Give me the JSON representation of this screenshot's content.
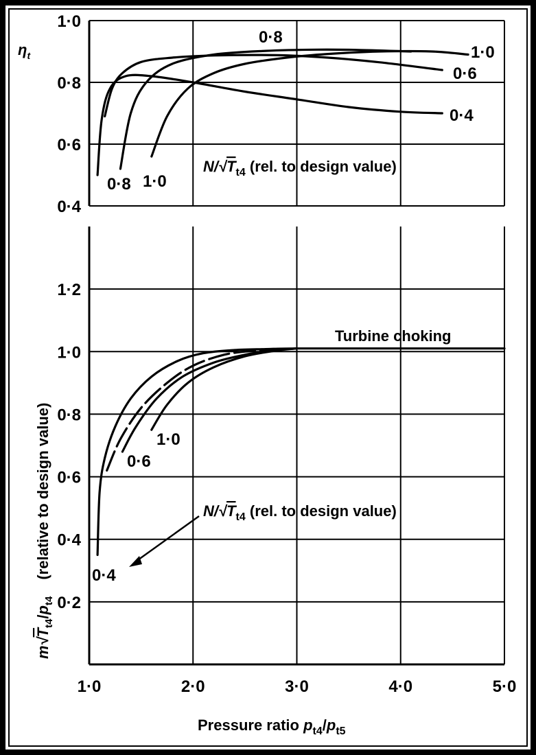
{
  "chart_data": [
    {
      "type": "line",
      "title": "",
      "xlabel": "Pressure ratio p_t4/p_t5",
      "ylabel": "η_t",
      "xlim": [
        1.0,
        5.0
      ],
      "ylim": [
        0.4,
        1.0
      ],
      "grid": true,
      "y_ticks": [
        "0·4",
        "0·6",
        "0·8",
        "1·0"
      ],
      "family_label": "N/√T_t4 (rel. to design value)",
      "series": [
        {
          "name": "0·4",
          "x": [
            1.08,
            1.12,
            1.2,
            1.35,
            1.6,
            2.0,
            2.5,
            3.0,
            3.5,
            4.0,
            4.4
          ],
          "y": [
            0.5,
            0.68,
            0.78,
            0.82,
            0.82,
            0.8,
            0.77,
            0.745,
            0.72,
            0.705,
            0.7
          ]
        },
        {
          "name": "0·6",
          "x": [
            1.15,
            1.22,
            1.32,
            1.5,
            1.8,
            2.2,
            2.8,
            3.3,
            3.8,
            4.4
          ],
          "y": [
            0.69,
            0.78,
            0.83,
            0.866,
            0.88,
            0.887,
            0.888,
            0.88,
            0.865,
            0.84
          ]
        },
        {
          "name": "0·8",
          "x": [
            1.3,
            1.4,
            1.55,
            1.8,
            2.2,
            2.7,
            3.2,
            3.6,
            4.1
          ],
          "y": [
            0.52,
            0.7,
            0.8,
            0.86,
            0.89,
            0.902,
            0.906,
            0.905,
            0.9
          ]
        },
        {
          "name": "1·0",
          "x": [
            1.6,
            1.75,
            1.95,
            2.2,
            2.5,
            2.9,
            3.3,
            3.8,
            4.3,
            4.65
          ],
          "y": [
            0.56,
            0.69,
            0.78,
            0.83,
            0.86,
            0.88,
            0.892,
            0.9,
            0.9,
            0.89
          ]
        }
      ]
    },
    {
      "type": "line",
      "title": "",
      "xlabel": "Pressure ratio p_t4/p_t5",
      "ylabel": "m√T_t4/p_t4 (relative to design value)",
      "xlim": [
        1.0,
        5.0
      ],
      "ylim": [
        0.0,
        1.4
      ],
      "grid": true,
      "x_ticks": [
        "1·0",
        "2·0",
        "3·0",
        "4·0",
        "5·0"
      ],
      "y_ticks": [
        "0·2",
        "0·4",
        "0·6",
        "0·8",
        "1·0",
        "1·2"
      ],
      "family_label": "N/√T_t4 (rel. to design value)",
      "annotation": "Turbine choking",
      "series": [
        {
          "name": "0·4",
          "x": [
            1.08,
            1.1,
            1.15,
            1.25,
            1.4,
            1.6,
            1.85,
            2.1,
            2.4,
            2.7,
            3.0,
            4.0,
            5.0
          ],
          "y": [
            0.35,
            0.55,
            0.66,
            0.76,
            0.85,
            0.92,
            0.97,
            0.995,
            1.005,
            1.008,
            1.01,
            1.01,
            1.01
          ]
        },
        {
          "name": "",
          "x": [
            1.17,
            1.3,
            1.5,
            1.75,
            2.0,
            2.3,
            2.6,
            2.9,
            3.0
          ],
          "y": [
            0.62,
            0.72,
            0.82,
            0.9,
            0.955,
            0.99,
            1.003,
            1.008,
            1.01
          ]
        },
        {
          "name": "0·6",
          "x": [
            1.32,
            1.45,
            1.65,
            1.9,
            2.2,
            2.5,
            2.8,
            3.0
          ],
          "y": [
            0.68,
            0.76,
            0.85,
            0.92,
            0.965,
            0.99,
            1.005,
            1.01
          ]
        },
        {
          "name": "1·0",
          "x": [
            1.6,
            1.75,
            1.95,
            2.2,
            2.5,
            2.8,
            3.0
          ],
          "y": [
            0.75,
            0.83,
            0.9,
            0.95,
            0.985,
            1.003,
            1.01
          ]
        }
      ]
    }
  ]
}
